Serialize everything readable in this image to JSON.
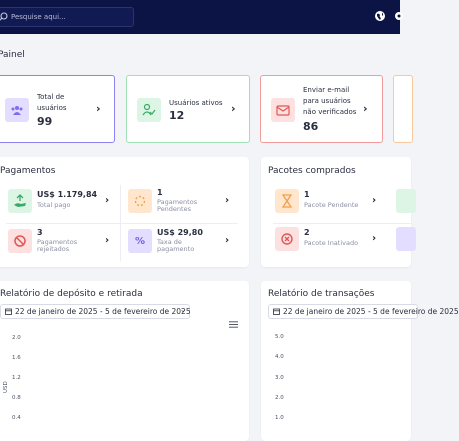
{
  "header": {
    "search_placeholder": "Pesquise aqui..."
  },
  "page_title": "Painel",
  "stats": [
    {
      "label": "Total de usuários",
      "value": "99",
      "color": "#7b6ef0"
    },
    {
      "label": "Usuários ativos",
      "value": "12",
      "color": "#7cd39a"
    },
    {
      "label": "Enviar e-mail para usuários não verificados",
      "value": "86",
      "color": "#f07b7b"
    }
  ],
  "payments": {
    "title": "Pagamentos",
    "items": [
      {
        "value": "US$ 1.179,84",
        "label": "Total pago"
      },
      {
        "value": "1",
        "label": "Pagamentos Pendentes"
      },
      {
        "value": "3",
        "label": "Pagamentos rejeitados"
      },
      {
        "value": "US$ 29,80",
        "label": "Taxa de pagamento"
      }
    ]
  },
  "packages": {
    "title": "Pacotes comprados",
    "items": [
      {
        "value": "1",
        "label": "Pacote Pendente"
      },
      {
        "value": "2",
        "label": "Pacote Inativado"
      }
    ]
  },
  "deposit_report": {
    "title": "Relatório de depósito e retirada",
    "date_range": "22 de janeiro de 2025 - 5 de fevereiro de 2025",
    "y_unit": "USD",
    "y_ticks": [
      "2.0",
      "1.6",
      "1.2",
      "0.8",
      "0.4"
    ]
  },
  "transactions_report": {
    "title": "Relatório de transações",
    "date_range": "22 de janeiro de 2025 - 5 de fevereiro de 2025",
    "y_ticks": [
      "5.0",
      "4.0",
      "3.0",
      "2.0",
      "1.0"
    ]
  }
}
